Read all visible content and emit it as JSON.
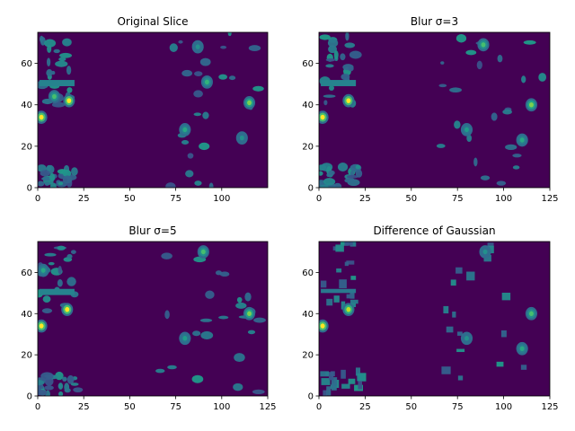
{
  "chart_data": [
    {
      "type": "heatmap",
      "title": "Original Slice",
      "colormap": "viridis",
      "xlim": [
        0,
        125
      ],
      "ylim": [
        0,
        75
      ],
      "xticks": [
        0,
        25,
        50,
        75,
        100
      ],
      "yticks": [
        0,
        20,
        40,
        60
      ],
      "xtick_labels": [
        "0",
        "25",
        "50",
        "75",
        "100"
      ],
      "ytick_labels": [
        "0",
        "20",
        "40",
        "60"
      ],
      "grid": false,
      "peaks": [
        {
          "x": 2,
          "y": 34,
          "value": 1.0
        },
        {
          "x": 17,
          "y": 42,
          "value": 1.0
        },
        {
          "x": 9,
          "y": 44,
          "value": 0.7
        },
        {
          "x": 115,
          "y": 41,
          "value": 0.8
        },
        {
          "x": 80,
          "y": 28,
          "value": 0.6
        },
        {
          "x": 92,
          "y": 51,
          "value": 0.65
        },
        {
          "x": 111,
          "y": 24,
          "value": 0.5
        },
        {
          "x": 87,
          "y": 68,
          "value": 0.5
        }
      ]
    },
    {
      "type": "heatmap",
      "title": "Blur σ=3",
      "colormap": "viridis",
      "xlim": [
        0,
        125
      ],
      "ylim": [
        0,
        75
      ],
      "xticks": [
        0,
        25,
        50,
        75,
        100,
        125
      ],
      "yticks": [
        0,
        20,
        40,
        60
      ],
      "xtick_labels": [
        "0",
        "25",
        "50",
        "75",
        "100",
        "125"
      ],
      "ytick_labels": [
        "0",
        "20",
        "40",
        "60"
      ],
      "grid": false,
      "peaks": [
        {
          "x": 2,
          "y": 34,
          "value": 1.0
        },
        {
          "x": 16,
          "y": 42,
          "value": 1.0
        },
        {
          "x": 115,
          "y": 40,
          "value": 0.8
        },
        {
          "x": 89,
          "y": 69,
          "value": 0.7
        },
        {
          "x": 110,
          "y": 23,
          "value": 0.6
        },
        {
          "x": 80,
          "y": 28,
          "value": 0.55
        }
      ]
    },
    {
      "type": "heatmap",
      "title": "Blur σ=5",
      "colormap": "viridis",
      "xlim": [
        0,
        125
      ],
      "ylim": [
        0,
        75
      ],
      "xticks": [
        0,
        25,
        50,
        75,
        100,
        125
      ],
      "yticks": [
        0,
        20,
        40,
        60
      ],
      "xtick_labels": [
        "0",
        "25",
        "50",
        "75",
        "100",
        "125"
      ],
      "ytick_labels": [
        "0",
        "20",
        "40",
        "60"
      ],
      "grid": false,
      "peaks": [
        {
          "x": 2,
          "y": 34,
          "value": 1.0
        },
        {
          "x": 16,
          "y": 42,
          "value": 1.0
        },
        {
          "x": 3,
          "y": 61,
          "value": 0.6
        },
        {
          "x": 115,
          "y": 40,
          "value": 0.8
        },
        {
          "x": 90,
          "y": 70,
          "value": 0.7
        },
        {
          "x": 80,
          "y": 28,
          "value": 0.55
        }
      ]
    },
    {
      "type": "heatmap",
      "title": "Difference of Gaussian",
      "colormap": "viridis",
      "xlim": [
        0,
        125
      ],
      "ylim": [
        0,
        75
      ],
      "xticks": [
        0,
        25,
        50,
        75,
        100,
        125
      ],
      "yticks": [
        0,
        20,
        40,
        60
      ],
      "xtick_labels": [
        "0",
        "25",
        "50",
        "75",
        "100",
        "125"
      ],
      "ytick_labels": [
        "0",
        "20",
        "40",
        "60"
      ],
      "grid": false,
      "peaks": [
        {
          "x": 2,
          "y": 34,
          "value": 1.0
        },
        {
          "x": 16,
          "y": 42,
          "value": 0.9
        },
        {
          "x": 115,
          "y": 40,
          "value": 0.7
        },
        {
          "x": 110,
          "y": 23,
          "value": 0.6
        },
        {
          "x": 80,
          "y": 28,
          "value": 0.5
        },
        {
          "x": 90,
          "y": 70,
          "value": 0.5
        }
      ]
    }
  ]
}
